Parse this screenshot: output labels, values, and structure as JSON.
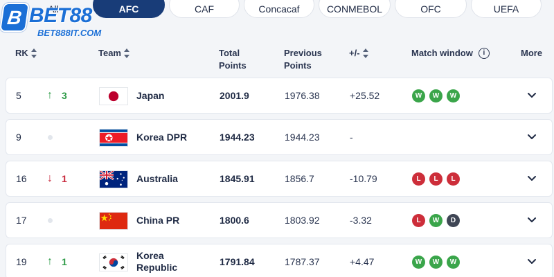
{
  "logo": {
    "badge": "B",
    "word": "BET88",
    "site": "BET888IT.COM"
  },
  "tabs": [
    {
      "label": "All",
      "active": false
    },
    {
      "label": "AFC",
      "active": true
    },
    {
      "label": "CAF",
      "active": false
    },
    {
      "label": "Concacaf",
      "active": false
    },
    {
      "label": "CONMEBOL",
      "active": false
    },
    {
      "label": "OFC",
      "active": false
    },
    {
      "label": "UEFA",
      "active": false
    }
  ],
  "header": {
    "rank": "RK",
    "team": "Team",
    "total_points": "Total\nPoints",
    "previous_points": "Previous\nPoints",
    "diff": "+/-",
    "match_window": "Match window",
    "info_glyph": "i",
    "more": "More"
  },
  "colors": {
    "accent": "#183c78",
    "win": "#3aa54a",
    "loss": "#cd2e3a",
    "draw": "#3f4655",
    "up": "#2e9b47",
    "down": "#c8283c"
  },
  "rows": [
    {
      "rank": "5",
      "move_dir": "up",
      "move_arrow": "↑",
      "move_value": "3",
      "team": "Japan",
      "flag": "japan-flag",
      "total": "2001.9",
      "previous": "1976.38",
      "diff": "+25.52",
      "matches": [
        "W",
        "W",
        "W"
      ]
    },
    {
      "rank": "9",
      "move_dir": "none",
      "move_arrow": "",
      "move_value": "",
      "team": "Korea DPR",
      "flag": "korea-dpr-flag",
      "total": "1944.23",
      "previous": "1944.23",
      "diff": "-",
      "matches": []
    },
    {
      "rank": "16",
      "move_dir": "down",
      "move_arrow": "↓",
      "move_value": "1",
      "team": "Australia",
      "flag": "australia-flag",
      "total": "1845.91",
      "previous": "1856.7",
      "diff": "-10.79",
      "matches": [
        "L",
        "L",
        "L"
      ]
    },
    {
      "rank": "17",
      "move_dir": "none",
      "move_arrow": "",
      "move_value": "",
      "team": "China PR",
      "flag": "china-flag",
      "total": "1800.6",
      "previous": "1803.92",
      "diff": "-3.32",
      "matches": [
        "L",
        "W",
        "D"
      ]
    },
    {
      "rank": "19",
      "move_dir": "up",
      "move_arrow": "↑",
      "move_value": "1",
      "team": "Korea\nRepublic",
      "flag": "korea-republic-flag",
      "total": "1791.84",
      "previous": "1787.37",
      "diff": "+4.47",
      "matches": [
        "W",
        "W",
        "W"
      ]
    }
  ]
}
